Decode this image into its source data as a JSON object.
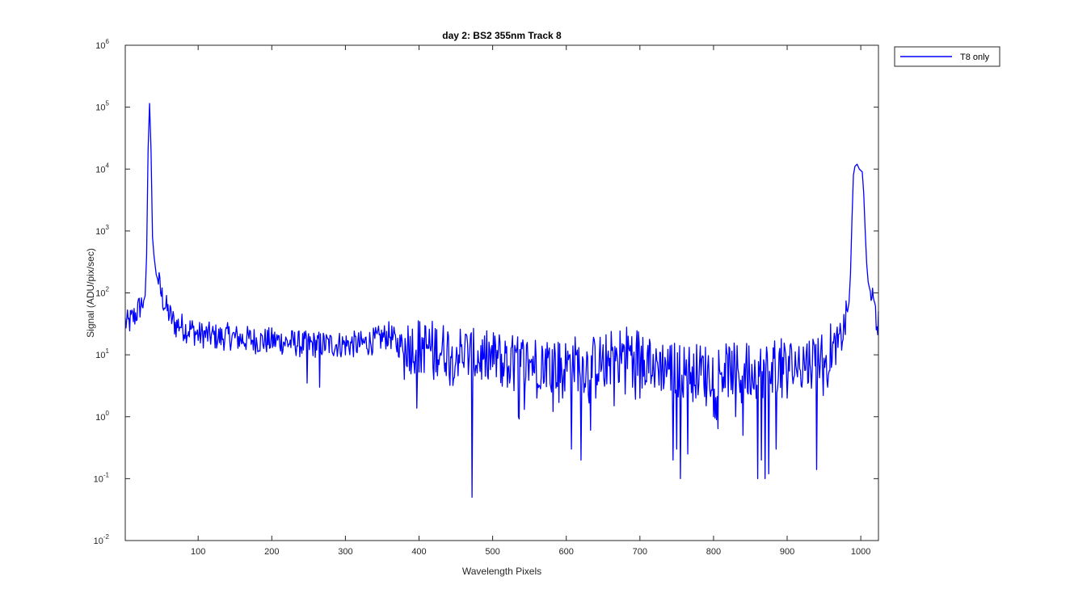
{
  "chart_data": {
    "type": "line",
    "title": "day 2: BS2  355nm  Track 8",
    "xlabel": "Wavelength Pixels",
    "ylabel": "Signal (ADU/pix/sec)",
    "xlim": [
      1,
      1024
    ],
    "ylim": [
      0.01,
      1000000
    ],
    "yscale": "log",
    "grid": false,
    "legend_position": "outside-top-right",
    "xticks": [
      100,
      200,
      300,
      400,
      500,
      600,
      700,
      800,
      900,
      1000
    ],
    "xtick_labels": [
      "100",
      "200",
      "300",
      "400",
      "500",
      "600",
      "700",
      "800",
      "900",
      "1000"
    ],
    "yticks": [
      0.01,
      0.1,
      1,
      10,
      100,
      1000,
      10000,
      100000,
      1000000
    ],
    "ytick_labels": [
      {
        "base": "10",
        "exp": "-2"
      },
      {
        "base": "10",
        "exp": "-1"
      },
      {
        "base": "10",
        "exp": "0"
      },
      {
        "base": "10",
        "exp": "1"
      },
      {
        "base": "10",
        "exp": "2"
      },
      {
        "base": "10",
        "exp": "3"
      },
      {
        "base": "10",
        "exp": "4"
      },
      {
        "base": "10",
        "exp": "5"
      },
      {
        "base": "10",
        "exp": "6"
      }
    ],
    "series": [
      {
        "name": "T8 only",
        "color": "#0000ff",
        "points": [
          [
            1,
            32
          ],
          [
            5,
            30
          ],
          [
            10,
            36
          ],
          [
            15,
            42
          ],
          [
            20,
            55
          ],
          [
            25,
            68
          ],
          [
            28,
            90
          ],
          [
            30,
            400
          ],
          [
            32,
            20000
          ],
          [
            34,
            115000
          ],
          [
            36,
            20000
          ],
          [
            38,
            800
          ],
          [
            40,
            400
          ],
          [
            43,
            200
          ],
          [
            46,
            150
          ],
          [
            50,
            90
          ],
          [
            55,
            60
          ],
          [
            60,
            45
          ],
          [
            65,
            35
          ],
          [
            70,
            28
          ],
          [
            75,
            30
          ],
          [
            80,
            26
          ],
          [
            85,
            24
          ],
          [
            90,
            25
          ],
          [
            95,
            22
          ],
          [
            100,
            20
          ],
          [
            110,
            20
          ],
          [
            120,
            19
          ],
          [
            130,
            18
          ],
          [
            140,
            19
          ],
          [
            150,
            18
          ],
          [
            160,
            17
          ],
          [
            170,
            17
          ],
          [
            180,
            16
          ],
          [
            190,
            16
          ],
          [
            200,
            16
          ],
          [
            210,
            16
          ],
          [
            220,
            15
          ],
          [
            230,
            15
          ],
          [
            240,
            14
          ],
          [
            250,
            14
          ],
          [
            260,
            14
          ],
          [
            270,
            14
          ],
          [
            280,
            14
          ],
          [
            290,
            14
          ],
          [
            300,
            14
          ],
          [
            310,
            14
          ],
          [
            320,
            14
          ],
          [
            330,
            15
          ],
          [
            340,
            16
          ],
          [
            350,
            18
          ],
          [
            360,
            20
          ],
          [
            365,
            17
          ],
          [
            370,
            14
          ],
          [
            380,
            14
          ],
          [
            390,
            12
          ],
          [
            400,
            13
          ],
          [
            410,
            12
          ],
          [
            420,
            12
          ],
          [
            430,
            11
          ],
          [
            440,
            11
          ],
          [
            450,
            10
          ],
          [
            460,
            10
          ],
          [
            470,
            9
          ],
          [
            480,
            8
          ],
          [
            490,
            8
          ],
          [
            500,
            8
          ],
          [
            510,
            8
          ],
          [
            520,
            7
          ],
          [
            530,
            7
          ],
          [
            540,
            7
          ],
          [
            550,
            7
          ],
          [
            560,
            7
          ],
          [
            570,
            7
          ],
          [
            580,
            7
          ],
          [
            590,
            6
          ],
          [
            600,
            6
          ],
          [
            610,
            7
          ],
          [
            620,
            6
          ],
          [
            630,
            6
          ],
          [
            640,
            7
          ],
          [
            650,
            7
          ],
          [
            660,
            8
          ],
          [
            670,
            9
          ],
          [
            680,
            10
          ],
          [
            690,
            10
          ],
          [
            700,
            9
          ],
          [
            710,
            8
          ],
          [
            720,
            7
          ],
          [
            730,
            6
          ],
          [
            740,
            6
          ],
          [
            750,
            5
          ],
          [
            760,
            5
          ],
          [
            770,
            5
          ],
          [
            780,
            5
          ],
          [
            790,
            5
          ],
          [
            800,
            5
          ],
          [
            810,
            5
          ],
          [
            820,
            5
          ],
          [
            830,
            5
          ],
          [
            840,
            5
          ],
          [
            850,
            5
          ],
          [
            860,
            5
          ],
          [
            870,
            5
          ],
          [
            880,
            6
          ],
          [
            890,
            6
          ],
          [
            900,
            6
          ],
          [
            910,
            6
          ],
          [
            920,
            7
          ],
          [
            930,
            7
          ],
          [
            940,
            8
          ],
          [
            950,
            9
          ],
          [
            960,
            11
          ],
          [
            970,
            14
          ],
          [
            975,
            20
          ],
          [
            980,
            35
          ],
          [
            984,
            70
          ],
          [
            986,
            200
          ],
          [
            988,
            1500
          ],
          [
            990,
            8000
          ],
          [
            992,
            11000
          ],
          [
            995,
            12000
          ],
          [
            998,
            10000
          ],
          [
            1002,
            9000
          ],
          [
            1004,
            4000
          ],
          [
            1006,
            1000
          ],
          [
            1008,
            300
          ],
          [
            1010,
            150
          ],
          [
            1015,
            80
          ],
          [
            1020,
            45
          ],
          [
            1024,
            30
          ]
        ],
        "dips": [
          [
            248,
            3.5
          ],
          [
            265,
            3
          ],
          [
            380,
            4
          ],
          [
            420,
            4
          ],
          [
            472,
            0.05
          ],
          [
            520,
            3
          ],
          [
            535,
            1
          ],
          [
            560,
            2
          ],
          [
            580,
            2.5
          ],
          [
            595,
            2
          ],
          [
            607,
            0.3
          ],
          [
            620,
            0.2
          ],
          [
            640,
            2
          ],
          [
            665,
            1.5
          ],
          [
            690,
            3
          ],
          [
            700,
            2
          ],
          [
            720,
            3
          ],
          [
            745,
            0.2
          ],
          [
            750,
            0.3
          ],
          [
            755,
            0.1
          ],
          [
            765,
            0.25
          ],
          [
            790,
            1.5
          ],
          [
            800,
            1
          ],
          [
            830,
            1
          ],
          [
            840,
            0.5
          ],
          [
            860,
            0.1
          ],
          [
            865,
            0.2
          ],
          [
            870,
            0.1
          ],
          [
            875,
            0.12
          ],
          [
            885,
            0.3
          ],
          [
            900,
            2
          ],
          [
            920,
            3
          ],
          [
            940,
            0.14
          ],
          [
            955,
            3
          ]
        ]
      }
    ]
  }
}
